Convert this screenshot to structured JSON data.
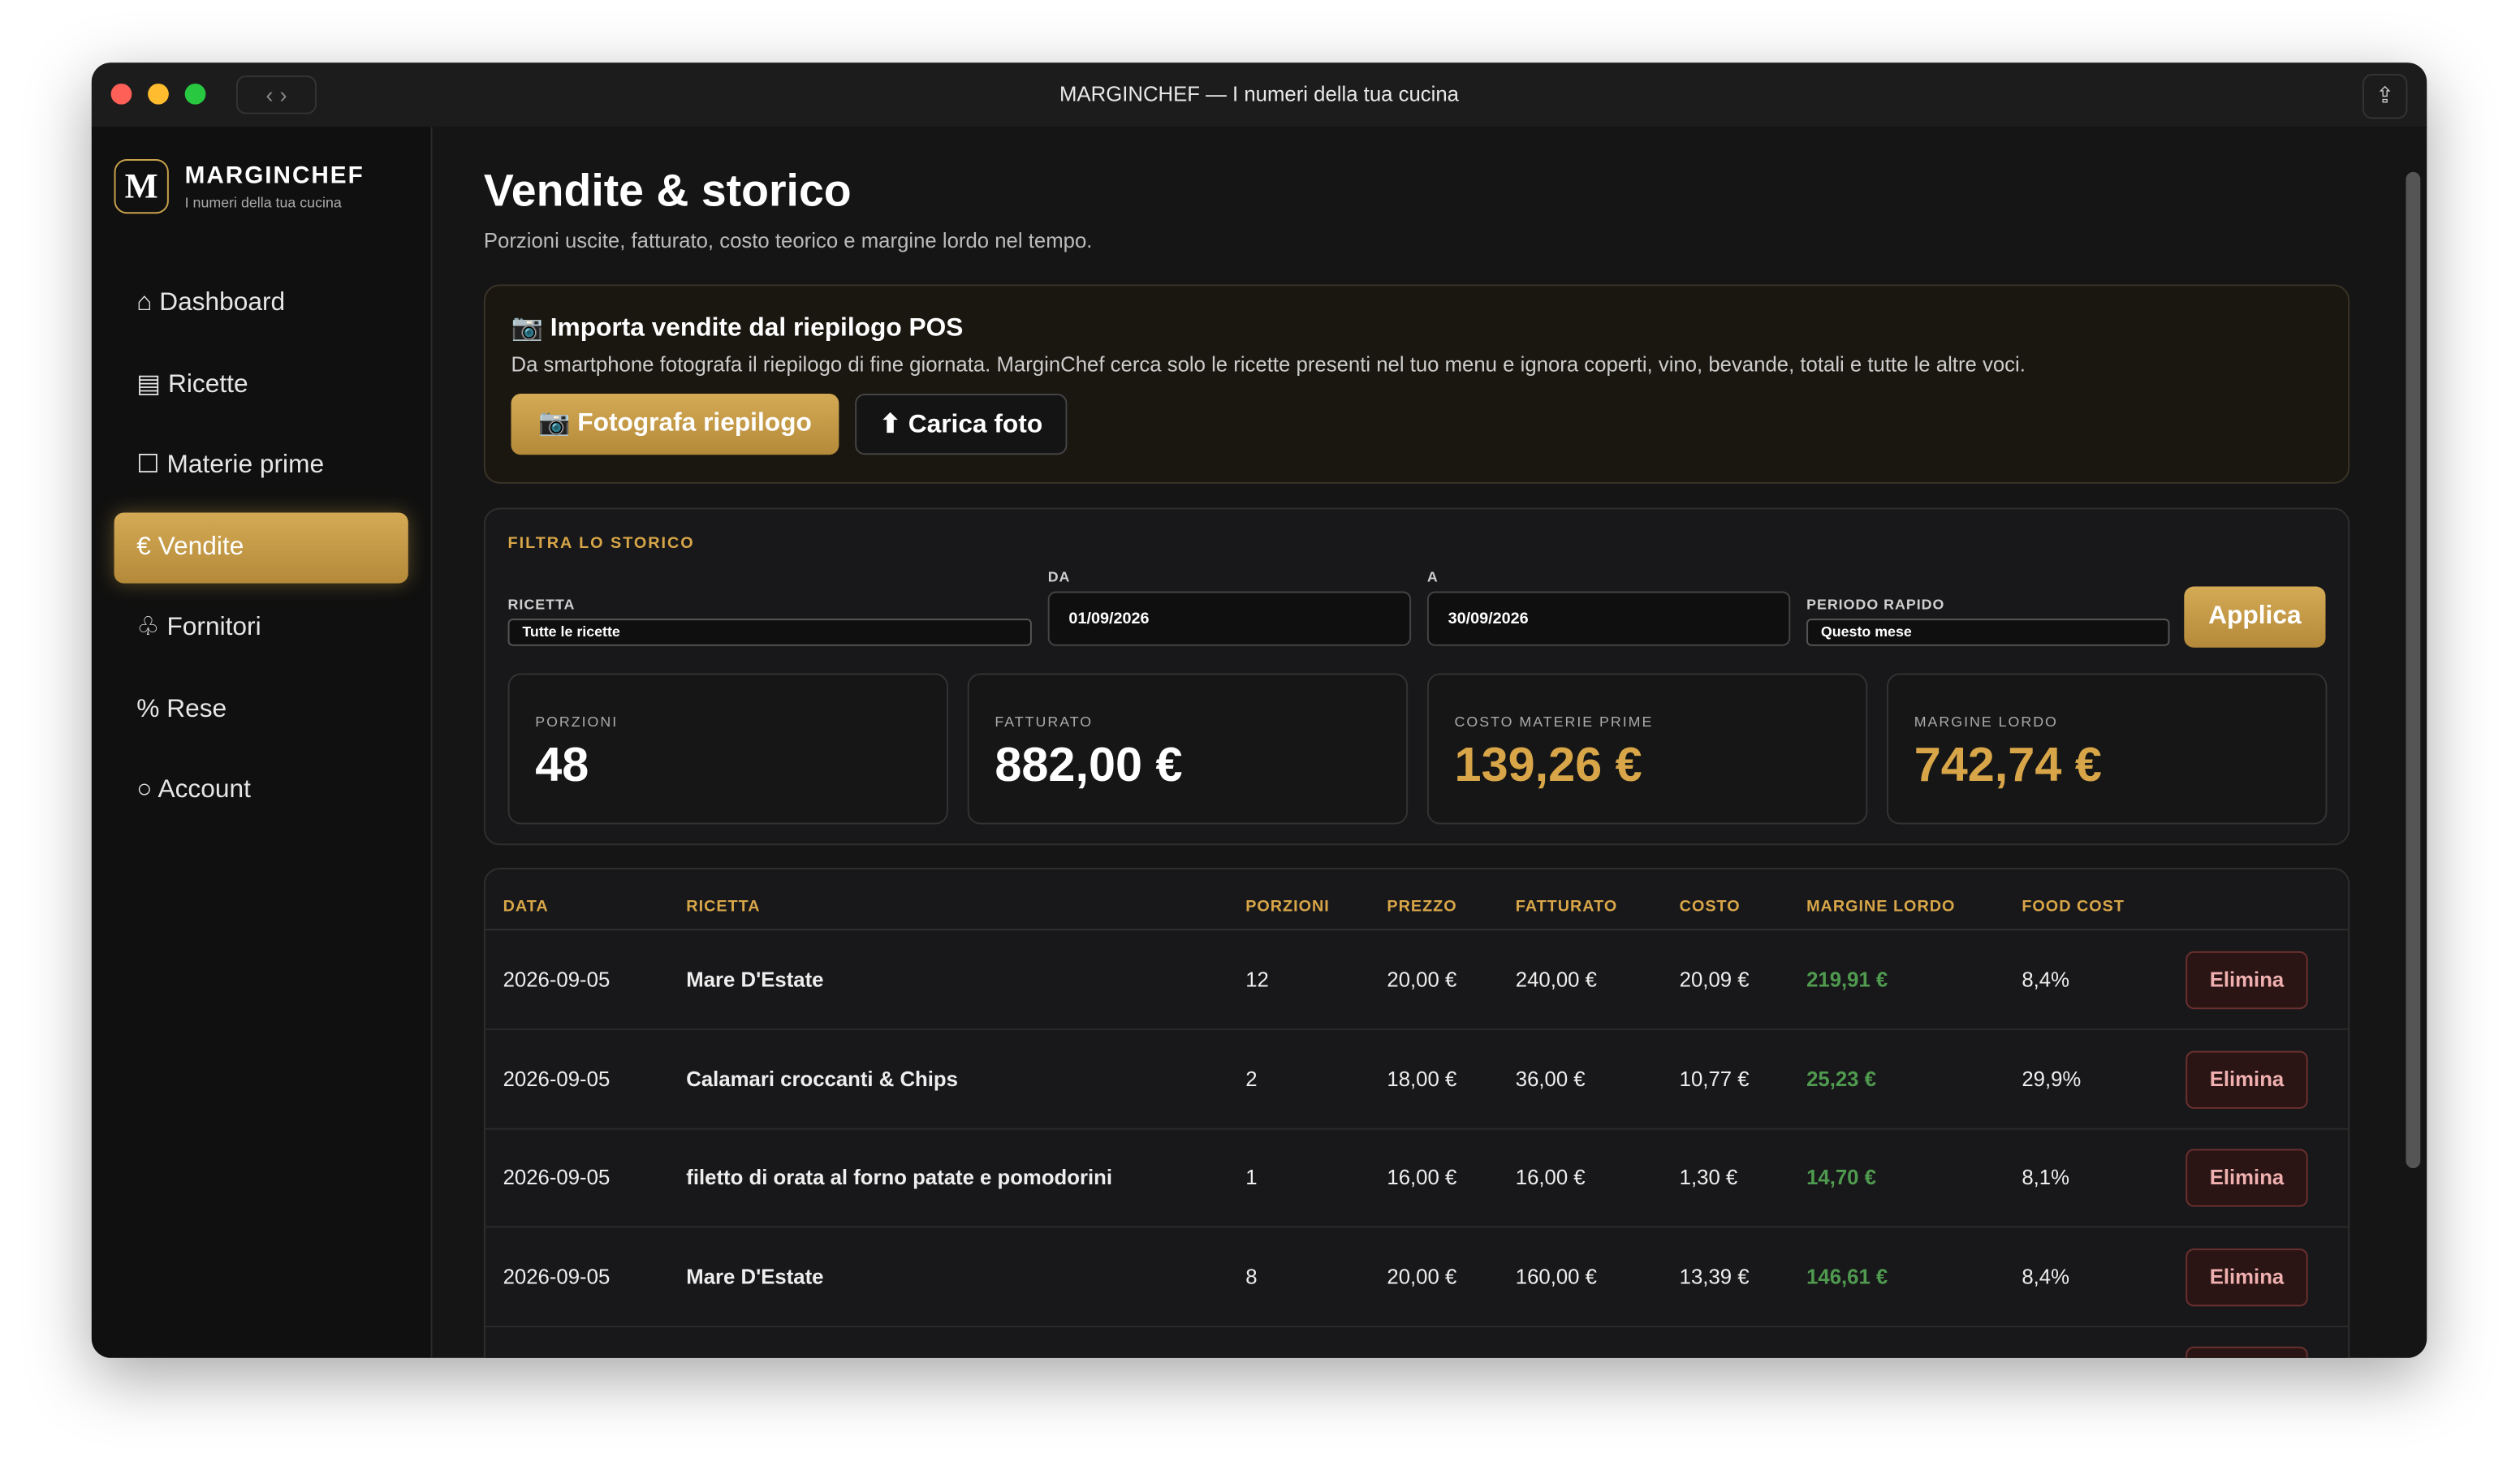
{
  "window": {
    "title": "MARGINCHEF — I numeri della tua cucina"
  },
  "sidebar": {
    "logo": "M",
    "brand": "MARGINCHEF",
    "tagline": "I numeri della tua cucina",
    "nav": [
      "⌂ Dashboard",
      "▤ Ricette",
      "☐ Materie prime",
      "€ Vendite",
      "♧ Fornitori",
      "% Rese",
      "○ Account"
    ],
    "active": 3
  },
  "header": {
    "title": "Vendite & storico",
    "subtitle": "Porzioni uscite, fatturato, costo teorico e margine lordo nel tempo."
  },
  "import": {
    "title": "📷 Importa vendite dal riepilogo POS",
    "text": "Da smartphone fotografa il riepilogo di fine giornata. MarginChef cerca solo le ricette presenti nel tuo menu e ignora coperti, vino, bevande, totali e tutte le altre voci.",
    "primary": "📷 Fotografa riepilogo",
    "secondary": "⬆ Carica foto"
  },
  "filter": {
    "title": "FILTRA LO STORICO",
    "recipe_label": "RICETTA",
    "recipe": "Tutte le ricette",
    "from_label": "DA",
    "from": "01/09/2026",
    "to_label": "A",
    "to": "30/09/2026",
    "period_label": "PERIODO RAPIDO",
    "period": "Questo mese",
    "apply": "Applica"
  },
  "stats": [
    {
      "label": "PORZIONI",
      "value": "48"
    },
    {
      "label": "FATTURATO",
      "value": "882,00 €"
    },
    {
      "label": "COSTO MATERIE PRIME",
      "value": "139,26 €"
    },
    {
      "label": "MARGINE LORDO",
      "value": "742,74 €"
    }
  ],
  "table": {
    "columns": [
      "DATA",
      "RICETTA",
      "PORZIONI",
      "PREZZO",
      "FATTURATO",
      "COSTO",
      "MARGINE LORDO",
      "FOOD COST"
    ],
    "action": "Elimina",
    "rows": [
      [
        "2026-09-05",
        "Mare D'Estate",
        "12",
        "20,00 €",
        "240,00 €",
        "20,09 €",
        "219,91 €",
        "8,4%"
      ],
      [
        "2026-09-05",
        "Calamari croccanti & Chips",
        "2",
        "18,00 €",
        "36,00 €",
        "10,77 €",
        "25,23 €",
        "29,9%"
      ],
      [
        "2026-09-05",
        "filetto di orata al forno patate e pomodorini",
        "1",
        "16,00 €",
        "16,00 €",
        "1,30 €",
        "14,70 €",
        "8,1%"
      ],
      [
        "2026-09-05",
        "Mare D'Estate",
        "8",
        "20,00 €",
        "160,00 €",
        "13,39 €",
        "146,61 €",
        "8,4%"
      ]
    ]
  }
}
